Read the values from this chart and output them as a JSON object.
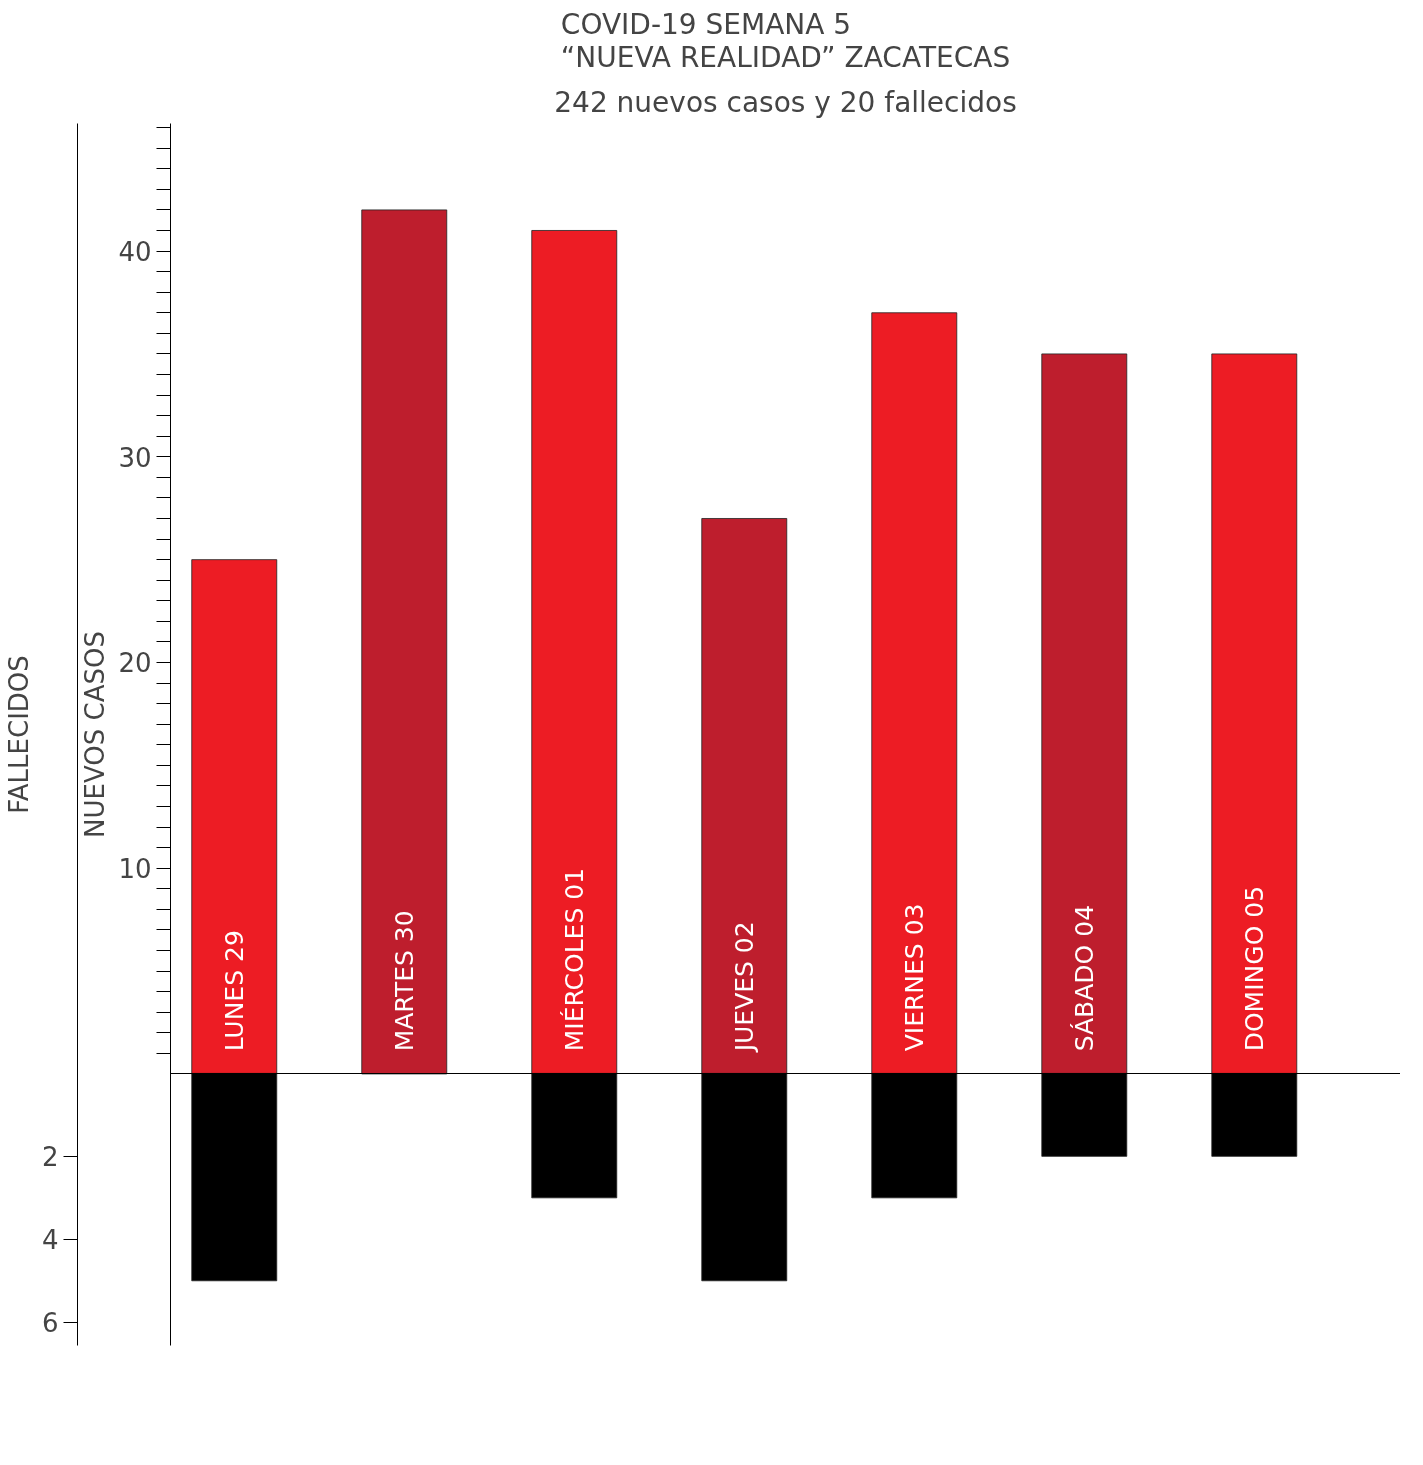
{
  "chart_data": {
    "type": "bar",
    "title": "COVID-19 SEMANA 5\n“NUEVA REALIDAD” ZACATECAS",
    "stacked": true,
    "subtitle": "242 nuevos casos y 20 fallecidos",
    "ylabel": "NUEVOS CASOS",
    "y2label": "FALLECIDOS",
    "categories": [
      "LUNES 29",
      "MARTES 30",
      "MIÉRCOLES 01",
      "JUEVES 02",
      "VIERNES 03",
      "SÁBADO 04",
      "DOMINGO 05"
    ],
    "series": [
      {
        "colors": [
          "#ed1c24",
          "#be1e2d",
          "#ed1c24",
          "#be1e2d",
          "#ed1c24",
          "#be1e2d",
          "#ed1c24"
        ],
        "values": [
          25,
          42,
          41,
          27,
          37,
          35,
          35
        ]
      },
      {
        "color": "#000000",
        "axis": "y2",
        "values": [
          5,
          null,
          3,
          5,
          3,
          2,
          2
        ]
      }
    ],
    "ylim": [
      -13.2,
      46.2
    ],
    "yticks": [
      {
        "value": 1,
        "label": null
      },
      {
        "value": 2,
        "label": null
      },
      {
        "value": 3,
        "label": null
      },
      {
        "value": 4,
        "label": null
      },
      {
        "value": 5,
        "label": null
      },
      {
        "value": 6,
        "label": null
      },
      {
        "value": 7,
        "label": null
      },
      {
        "value": 8,
        "label": null
      },
      {
        "value": 9,
        "label": null
      },
      10,
      {
        "value": 11,
        "label": null
      },
      {
        "value": 12,
        "label": null
      },
      {
        "value": 13,
        "label": null
      },
      {
        "value": 14,
        "label": null
      },
      {
        "value": 15,
        "label": null
      },
      {
        "value": 16,
        "label": null
      },
      {
        "value": 17,
        "label": null
      },
      {
        "value": 18,
        "label": null
      },
      {
        "value": 19,
        "label": null
      },
      20,
      {
        "value": 21,
        "label": null
      },
      {
        "value": 22,
        "label": null
      },
      {
        "value": 23,
        "label": null
      },
      {
        "value": 24,
        "label": null
      },
      {
        "value": 25,
        "label": null
      },
      {
        "value": 26,
        "label": null
      },
      {
        "value": 27,
        "label": null
      },
      {
        "value": 28,
        "label": null
      },
      {
        "value": 29,
        "label": null
      },
      30,
      {
        "value": 31,
        "label": null
      },
      {
        "value": 32,
        "label": null
      },
      {
        "value": 33,
        "label": null
      },
      {
        "value": 34,
        "label": null
      },
      {
        "value": 35,
        "label": null
      },
      {
        "value": 36,
        "label": null
      },
      {
        "value": 37,
        "label": null
      },
      {
        "value": 38,
        "label": null
      },
      {
        "value": 39,
        "label": null
      },
      40,
      {
        "value": 41,
        "label": null
      },
      {
        "value": 42,
        "label": null
      },
      {
        "value": 43,
        "label": null
      },
      {
        "value": 44,
        "label": null
      },
      {
        "value": 45,
        "label": null
      },
      {
        "value": 46,
        "label": null
      }
    ],
    "y2lim": [
      6.56,
      -22.9
    ],
    "y2ticks": [
      2,
      4,
      6
    ],
    "grid": false
  }
}
